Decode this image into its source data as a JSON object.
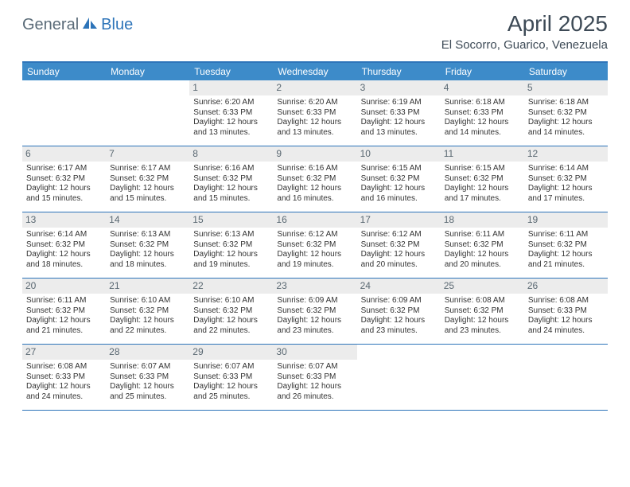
{
  "brand": {
    "text1": "General",
    "text2": "Blue",
    "logo_fill": "#2d74b9"
  },
  "title": "April 2025",
  "location": "El Socorro, Guarico, Venezuela",
  "colors": {
    "header_bg": "#3d8bc9",
    "header_border": "#2d74b9",
    "daynum_bg": "#ececec",
    "text": "#333333",
    "title_text": "#3d4a56"
  },
  "day_names": [
    "Sunday",
    "Monday",
    "Tuesday",
    "Wednesday",
    "Thursday",
    "Friday",
    "Saturday"
  ],
  "weeks": [
    [
      {
        "empty": true
      },
      {
        "empty": true
      },
      {
        "n": "1",
        "sr": "Sunrise: 6:20 AM",
        "ss": "Sunset: 6:33 PM",
        "dl": "Daylight: 12 hours and 13 minutes."
      },
      {
        "n": "2",
        "sr": "Sunrise: 6:20 AM",
        "ss": "Sunset: 6:33 PM",
        "dl": "Daylight: 12 hours and 13 minutes."
      },
      {
        "n": "3",
        "sr": "Sunrise: 6:19 AM",
        "ss": "Sunset: 6:33 PM",
        "dl": "Daylight: 12 hours and 13 minutes."
      },
      {
        "n": "4",
        "sr": "Sunrise: 6:18 AM",
        "ss": "Sunset: 6:33 PM",
        "dl": "Daylight: 12 hours and 14 minutes."
      },
      {
        "n": "5",
        "sr": "Sunrise: 6:18 AM",
        "ss": "Sunset: 6:32 PM",
        "dl": "Daylight: 12 hours and 14 minutes."
      }
    ],
    [
      {
        "n": "6",
        "sr": "Sunrise: 6:17 AM",
        "ss": "Sunset: 6:32 PM",
        "dl": "Daylight: 12 hours and 15 minutes."
      },
      {
        "n": "7",
        "sr": "Sunrise: 6:17 AM",
        "ss": "Sunset: 6:32 PM",
        "dl": "Daylight: 12 hours and 15 minutes."
      },
      {
        "n": "8",
        "sr": "Sunrise: 6:16 AM",
        "ss": "Sunset: 6:32 PM",
        "dl": "Daylight: 12 hours and 15 minutes."
      },
      {
        "n": "9",
        "sr": "Sunrise: 6:16 AM",
        "ss": "Sunset: 6:32 PM",
        "dl": "Daylight: 12 hours and 16 minutes."
      },
      {
        "n": "10",
        "sr": "Sunrise: 6:15 AM",
        "ss": "Sunset: 6:32 PM",
        "dl": "Daylight: 12 hours and 16 minutes."
      },
      {
        "n": "11",
        "sr": "Sunrise: 6:15 AM",
        "ss": "Sunset: 6:32 PM",
        "dl": "Daylight: 12 hours and 17 minutes."
      },
      {
        "n": "12",
        "sr": "Sunrise: 6:14 AM",
        "ss": "Sunset: 6:32 PM",
        "dl": "Daylight: 12 hours and 17 minutes."
      }
    ],
    [
      {
        "n": "13",
        "sr": "Sunrise: 6:14 AM",
        "ss": "Sunset: 6:32 PM",
        "dl": "Daylight: 12 hours and 18 minutes."
      },
      {
        "n": "14",
        "sr": "Sunrise: 6:13 AM",
        "ss": "Sunset: 6:32 PM",
        "dl": "Daylight: 12 hours and 18 minutes."
      },
      {
        "n": "15",
        "sr": "Sunrise: 6:13 AM",
        "ss": "Sunset: 6:32 PM",
        "dl": "Daylight: 12 hours and 19 minutes."
      },
      {
        "n": "16",
        "sr": "Sunrise: 6:12 AM",
        "ss": "Sunset: 6:32 PM",
        "dl": "Daylight: 12 hours and 19 minutes."
      },
      {
        "n": "17",
        "sr": "Sunrise: 6:12 AM",
        "ss": "Sunset: 6:32 PM",
        "dl": "Daylight: 12 hours and 20 minutes."
      },
      {
        "n": "18",
        "sr": "Sunrise: 6:11 AM",
        "ss": "Sunset: 6:32 PM",
        "dl": "Daylight: 12 hours and 20 minutes."
      },
      {
        "n": "19",
        "sr": "Sunrise: 6:11 AM",
        "ss": "Sunset: 6:32 PM",
        "dl": "Daylight: 12 hours and 21 minutes."
      }
    ],
    [
      {
        "n": "20",
        "sr": "Sunrise: 6:11 AM",
        "ss": "Sunset: 6:32 PM",
        "dl": "Daylight: 12 hours and 21 minutes."
      },
      {
        "n": "21",
        "sr": "Sunrise: 6:10 AM",
        "ss": "Sunset: 6:32 PM",
        "dl": "Daylight: 12 hours and 22 minutes."
      },
      {
        "n": "22",
        "sr": "Sunrise: 6:10 AM",
        "ss": "Sunset: 6:32 PM",
        "dl": "Daylight: 12 hours and 22 minutes."
      },
      {
        "n": "23",
        "sr": "Sunrise: 6:09 AM",
        "ss": "Sunset: 6:32 PM",
        "dl": "Daylight: 12 hours and 23 minutes."
      },
      {
        "n": "24",
        "sr": "Sunrise: 6:09 AM",
        "ss": "Sunset: 6:32 PM",
        "dl": "Daylight: 12 hours and 23 minutes."
      },
      {
        "n": "25",
        "sr": "Sunrise: 6:08 AM",
        "ss": "Sunset: 6:32 PM",
        "dl": "Daylight: 12 hours and 23 minutes."
      },
      {
        "n": "26",
        "sr": "Sunrise: 6:08 AM",
        "ss": "Sunset: 6:33 PM",
        "dl": "Daylight: 12 hours and 24 minutes."
      }
    ],
    [
      {
        "n": "27",
        "sr": "Sunrise: 6:08 AM",
        "ss": "Sunset: 6:33 PM",
        "dl": "Daylight: 12 hours and 24 minutes."
      },
      {
        "n": "28",
        "sr": "Sunrise: 6:07 AM",
        "ss": "Sunset: 6:33 PM",
        "dl": "Daylight: 12 hours and 25 minutes."
      },
      {
        "n": "29",
        "sr": "Sunrise: 6:07 AM",
        "ss": "Sunset: 6:33 PM",
        "dl": "Daylight: 12 hours and 25 minutes."
      },
      {
        "n": "30",
        "sr": "Sunrise: 6:07 AM",
        "ss": "Sunset: 6:33 PM",
        "dl": "Daylight: 12 hours and 26 minutes."
      },
      {
        "empty": true
      },
      {
        "empty": true
      },
      {
        "empty": true
      }
    ]
  ]
}
